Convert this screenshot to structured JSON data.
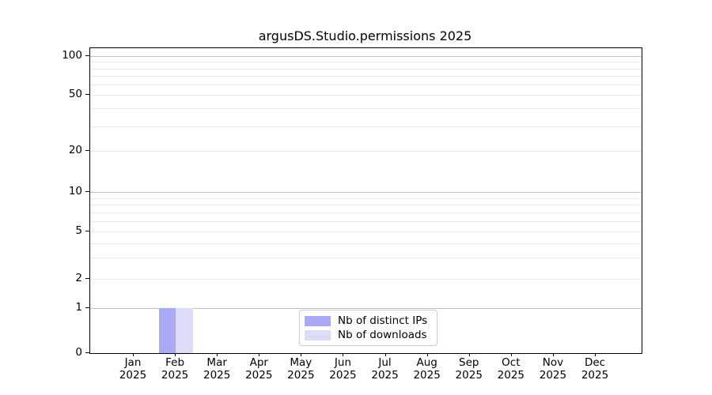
{
  "title": "argusDS.Studio.permissions 2025",
  "legend": {
    "items": [
      {
        "label": "Nb of distinct IPs",
        "color": "#a9a9f5"
      },
      {
        "label": "Nb of downloads",
        "color": "#dcdcf8"
      }
    ]
  },
  "chart_data": {
    "type": "bar",
    "title": "argusDS.Studio.permissions 2025",
    "categories": [
      "Jan",
      "Feb",
      "Mar",
      "Apr",
      "May",
      "Jun",
      "Jul",
      "Aug",
      "Sep",
      "Oct",
      "Nov",
      "Dec"
    ],
    "x_tick_second_line": "2025",
    "series": [
      {
        "name": "Nb of distinct IPs",
        "color": "#a9a9f5",
        "values": [
          0,
          1,
          0,
          0,
          0,
          0,
          0,
          0,
          0,
          0,
          0,
          0
        ]
      },
      {
        "name": "Nb of downloads",
        "color": "#dcdcf8",
        "values": [
          0,
          1,
          0,
          0,
          0,
          0,
          0,
          0,
          0,
          0,
          0,
          0
        ]
      }
    ],
    "xlabel": "",
    "ylabel": "",
    "y_scale": "symlog",
    "y_ticks": [
      0,
      1,
      2,
      5,
      10,
      20,
      50,
      100
    ],
    "y_major_gridlines": [
      1,
      10,
      100
    ],
    "y_minor_gridlines": [
      2,
      3,
      4,
      5,
      6,
      7,
      8,
      9,
      20,
      30,
      40,
      50,
      60,
      70,
      80,
      90
    ],
    "ylim": [
      0,
      110
    ],
    "grid": "horizontal",
    "legend_position": "lower center",
    "colors": {
      "major_grid": "#c3c3c3",
      "minor_grid": "#e9e9e9",
      "spine": "#000000",
      "text": "#000000"
    }
  }
}
